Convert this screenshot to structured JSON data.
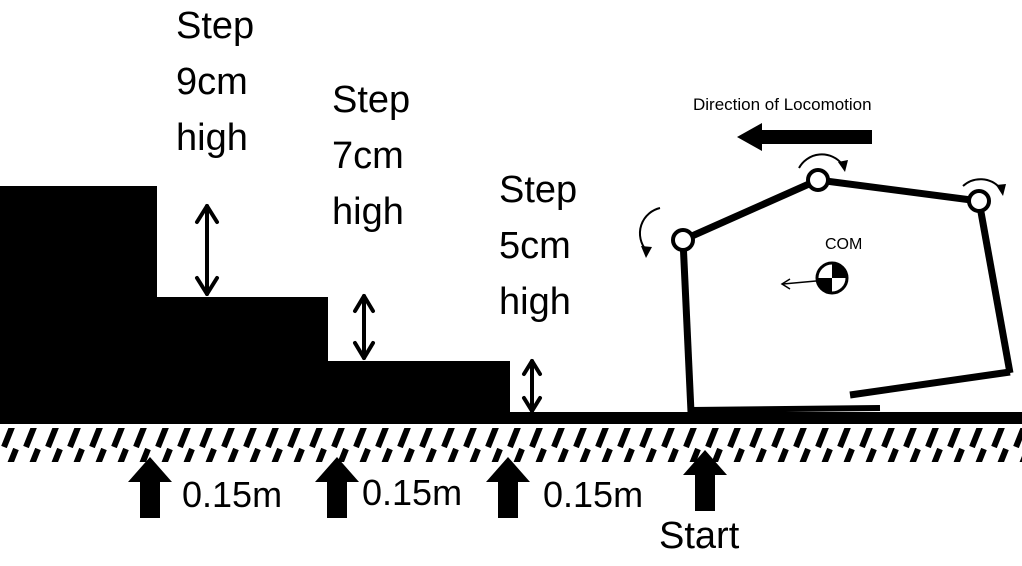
{
  "steps": [
    {
      "word": "Step",
      "height": "9cm",
      "suffix": "high"
    },
    {
      "word": "Step",
      "height": "7cm",
      "suffix": "high"
    },
    {
      "word": "Step",
      "height": "5cm",
      "suffix": "high"
    }
  ],
  "distances": [
    "0.15m",
    "0.15m",
    "0.15m"
  ],
  "start_label": "Start",
  "direction_label": "Direction of Locomotion",
  "com_label": "COM",
  "colors": {
    "ink": "#000000",
    "background": "#ffffff"
  }
}
